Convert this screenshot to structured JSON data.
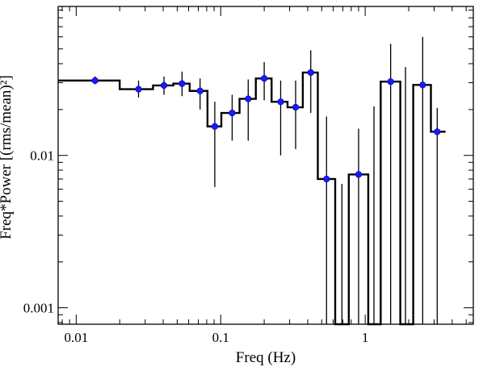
{
  "chart_data": {
    "type": "line",
    "xlabel": "Freq (Hz)",
    "ylabel": "Freq*Power [(rms/mean)²]",
    "x_scale": "log",
    "y_scale": "log",
    "xlim": [
      0.0075,
      5.6
    ],
    "ylim": [
      0.00078,
      0.095
    ],
    "x_tick_labels": [
      {
        "value": 0.01,
        "label": "0.01"
      },
      {
        "value": 0.1,
        "label": "0.1"
      },
      {
        "value": 1,
        "label": "1"
      }
    ],
    "y_tick_labels": [
      {
        "value": 0.01,
        "label": "0.01"
      },
      {
        "value": 0.001,
        "label": "0.001"
      }
    ],
    "colors": {
      "points": "#1a1aff",
      "step": "#000000",
      "errorbars": "#000000"
    },
    "series": [
      {
        "bins": [
          {
            "lo": 0.0075,
            "hi": 0.02,
            "x": 0.0135,
            "y": 0.031,
            "err_lo": 0.0293,
            "err_hi": 0.033
          },
          {
            "lo": 0.02,
            "hi": 0.034,
            "x": 0.027,
            "y": 0.0272,
            "err_lo": 0.024,
            "err_hi": 0.031
          },
          {
            "lo": 0.034,
            "hi": 0.047,
            "x": 0.0405,
            "y": 0.0288,
            "err_lo": 0.025,
            "err_hi": 0.033
          },
          {
            "lo": 0.047,
            "hi": 0.061,
            "x": 0.054,
            "y": 0.0296,
            "err_lo": 0.0245,
            "err_hi": 0.0355
          },
          {
            "lo": 0.061,
            "hi": 0.081,
            "x": 0.072,
            "y": 0.0265,
            "err_lo": 0.02,
            "err_hi": 0.032
          },
          {
            "lo": 0.081,
            "hi": 0.101,
            "x": 0.091,
            "y": 0.0155,
            "err_lo": 0.0062,
            "err_hi": 0.0225
          },
          {
            "lo": 0.101,
            "hi": 0.135,
            "x": 0.12,
            "y": 0.019,
            "err_lo": 0.0125,
            "err_hi": 0.025
          },
          {
            "lo": 0.135,
            "hi": 0.175,
            "x": 0.155,
            "y": 0.0235,
            "err_lo": 0.0125,
            "err_hi": 0.0315
          },
          {
            "lo": 0.175,
            "hi": 0.225,
            "x": 0.2,
            "y": 0.032,
            "err_lo": 0.023,
            "err_hi": 0.041
          },
          {
            "lo": 0.225,
            "hi": 0.29,
            "x": 0.26,
            "y": 0.0225,
            "err_lo": 0.01,
            "err_hi": 0.031
          },
          {
            "lo": 0.29,
            "hi": 0.37,
            "x": 0.33,
            "y": 0.0207,
            "err_lo": 0.011,
            "err_hi": 0.031
          },
          {
            "lo": 0.37,
            "hi": 0.47,
            "x": 0.42,
            "y": 0.035,
            "err_lo": 0.019,
            "err_hi": 0.049
          },
          {
            "lo": 0.47,
            "hi": 0.62,
            "x": 0.54,
            "y": 0.007,
            "err_lo": 0.00078,
            "err_hi": 0.018
          },
          {
            "lo": 0.62,
            "hi": 0.77,
            "x": 0.69,
            "y": 0.00078,
            "err_lo": 0.00078,
            "err_hi": 0.0065,
            "no_marker": true
          },
          {
            "lo": 0.77,
            "hi": 1.05,
            "x": 0.9,
            "y": 0.0075,
            "err_lo": 0.00078,
            "err_hi": 0.015
          },
          {
            "lo": 1.05,
            "hi": 1.28,
            "x": 1.15,
            "y": 0.00078,
            "err_lo": 0.00078,
            "err_hi": 0.021,
            "no_marker": true
          },
          {
            "lo": 1.28,
            "hi": 1.75,
            "x": 1.5,
            "y": 0.0305,
            "err_lo": 0.00078,
            "err_hi": 0.054
          },
          {
            "lo": 1.75,
            "hi": 2.15,
            "x": 1.9,
            "y": 0.00078,
            "err_lo": 0.00078,
            "err_hi": 0.038,
            "no_marker": true
          },
          {
            "lo": 2.15,
            "hi": 2.85,
            "x": 2.5,
            "y": 0.029,
            "err_lo": 0.00078,
            "err_hi": 0.06
          },
          {
            "lo": 2.85,
            "hi": 3.6,
            "x": 3.15,
            "y": 0.0143,
            "err_lo": 0.00078,
            "err_hi": 0.0205
          }
        ]
      }
    ]
  }
}
